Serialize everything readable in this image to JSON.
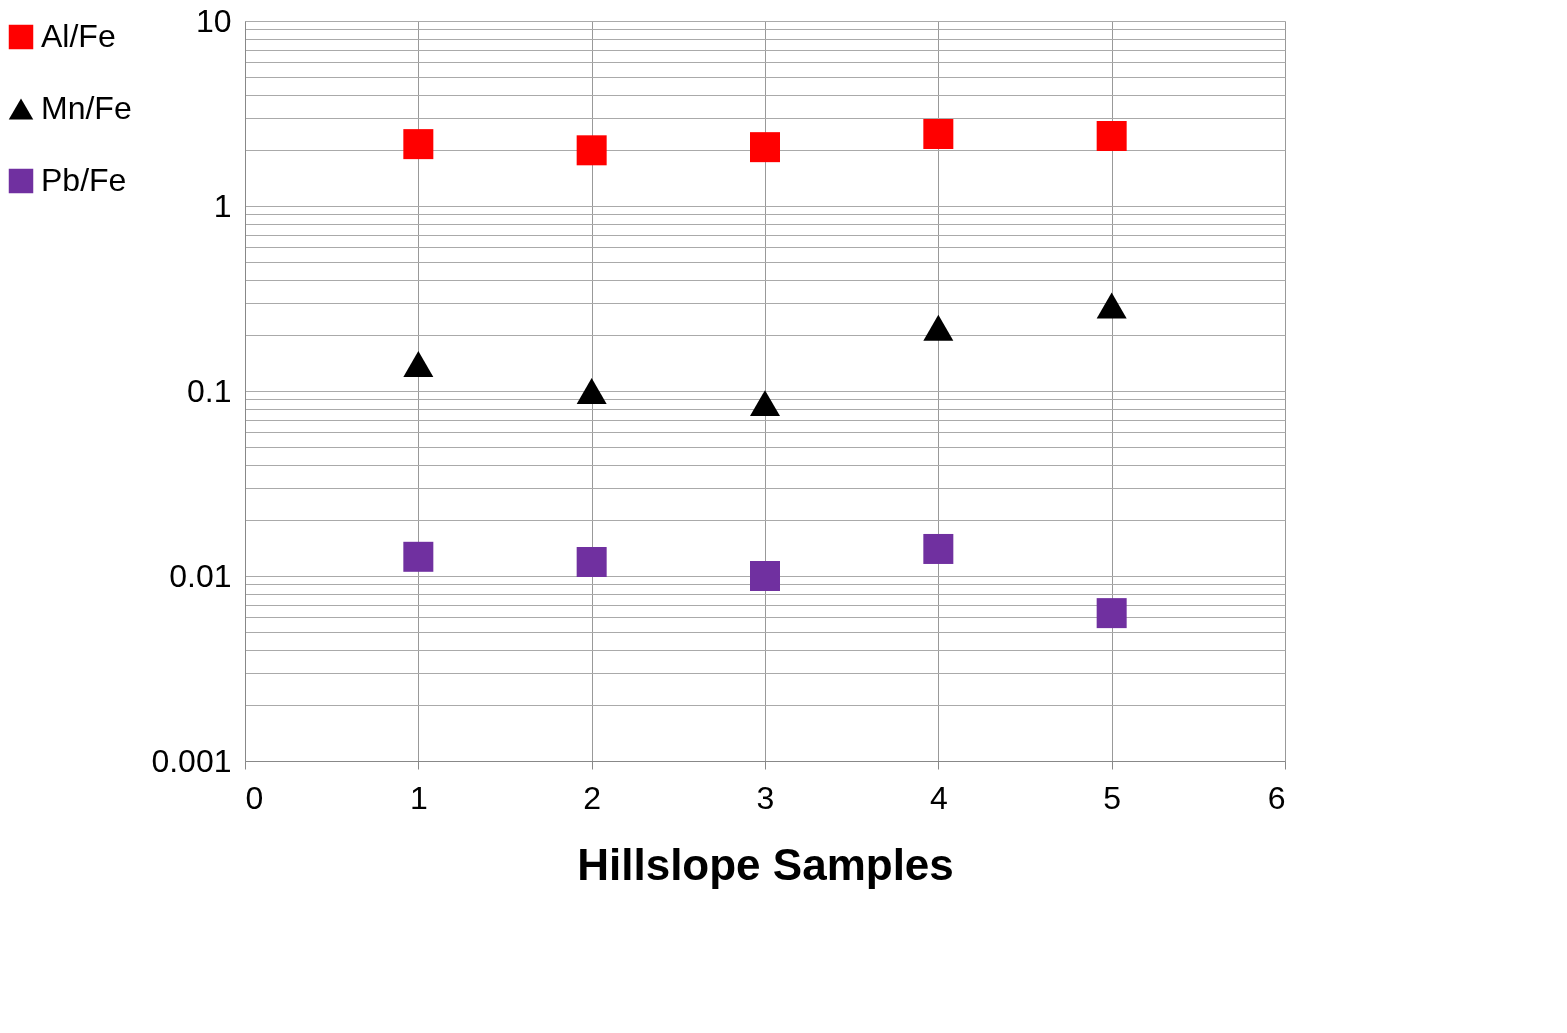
{
  "chart_data": {
    "type": "scatter",
    "xlabel": "Hillslope Samples",
    "x": [
      1,
      2,
      3,
      4,
      5
    ],
    "series": [
      {
        "name": "Al/Fe",
        "color": "#ff0000",
        "marker": "square",
        "values": [
          2.16,
          2.0,
          2.08,
          2.45,
          2.39
        ]
      },
      {
        "name": "Mn/Fe",
        "color": "#000000",
        "marker": "triangle",
        "values": [
          0.14,
          0.1,
          0.086,
          0.22,
          0.29
        ]
      },
      {
        "name": "Pb/Fe",
        "color": "#7030a0",
        "marker": "square",
        "values": [
          0.0127,
          0.0119,
          0.01,
          0.014,
          0.0063
        ]
      }
    ],
    "xlim": [
      0,
      6
    ],
    "xticks": [
      0,
      1,
      2,
      3,
      4,
      5,
      6
    ],
    "ylim": [
      0.001,
      10
    ],
    "yticks": [
      0.001,
      0.01,
      0.1,
      1,
      10
    ],
    "log": "y",
    "grid": true,
    "legend": "left"
  }
}
